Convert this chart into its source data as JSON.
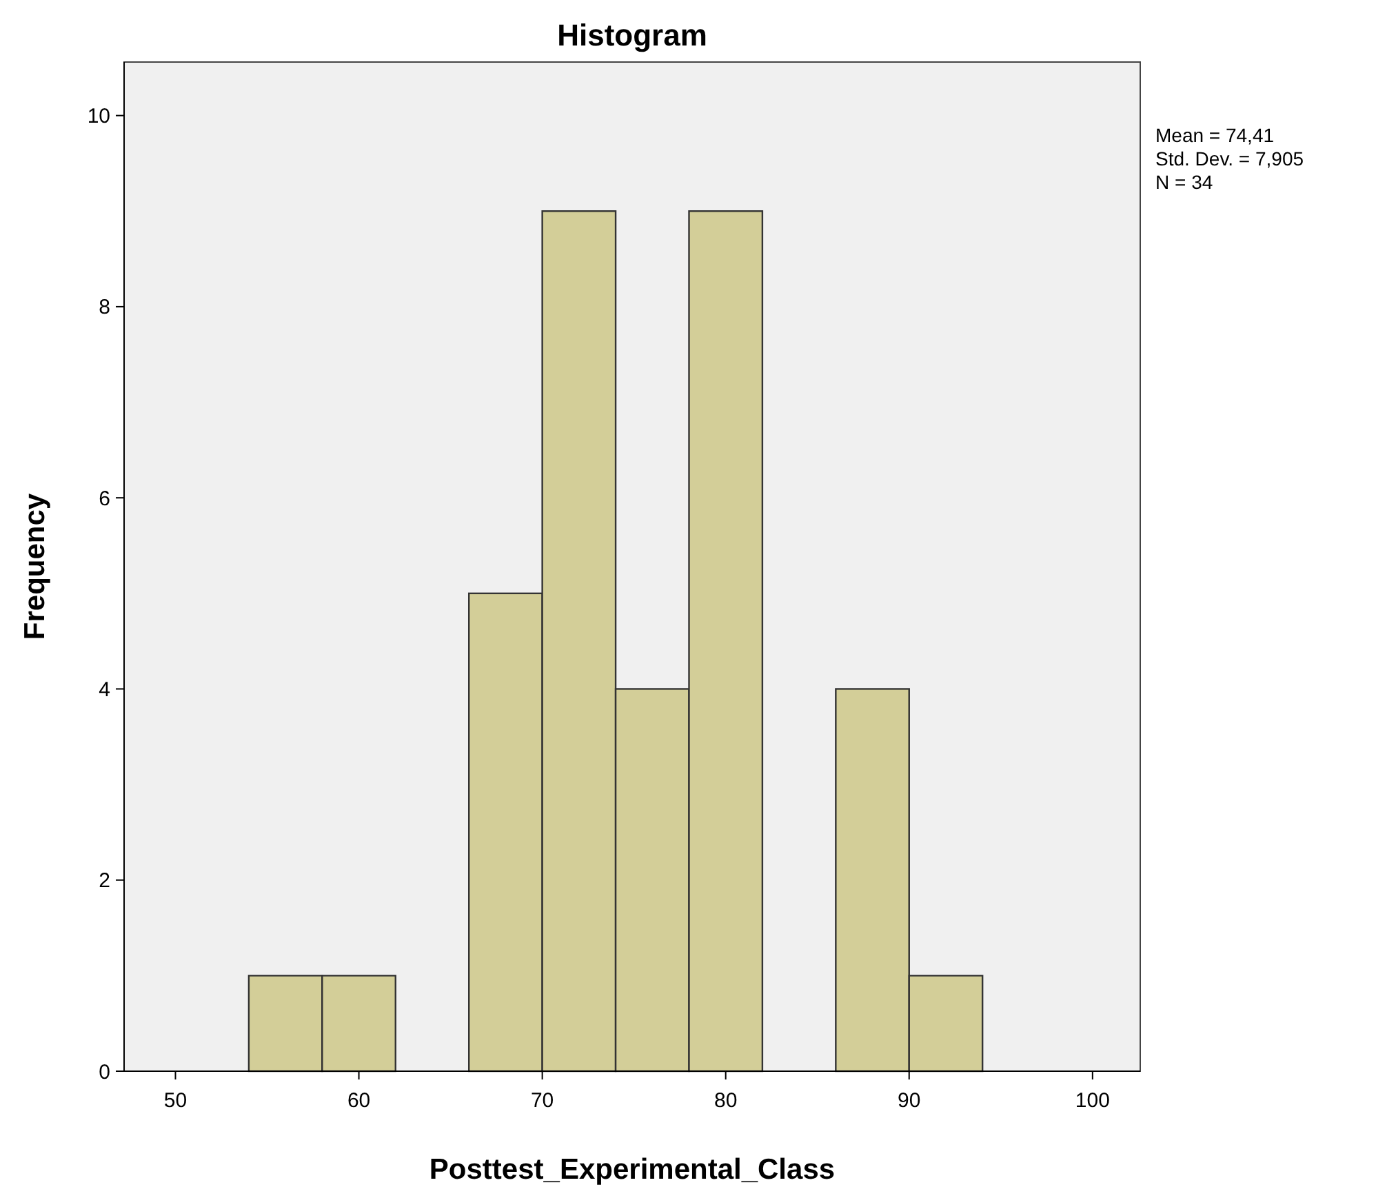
{
  "chart_data": {
    "type": "histogram",
    "title": "Histogram",
    "xlabel": "Posttest_Experimental_Class",
    "ylabel": "Frequency",
    "bins": [
      54,
      58,
      62,
      66,
      70,
      74,
      78,
      82,
      86,
      90,
      94
    ],
    "values": [
      1,
      1,
      0,
      5,
      9,
      4,
      9,
      0,
      4,
      1
    ],
    "color": "#d3ce98",
    "xlim": [
      47.2,
      102.6
    ],
    "xticks": [
      50,
      60,
      70,
      80,
      90,
      100
    ],
    "ylim": [
      0,
      10.56
    ],
    "yticks": [
      0,
      2,
      4,
      6,
      8,
      10
    ],
    "annotations": [
      "Mean = 74,41",
      "Std. Dev. = 7,905",
      "N = 34"
    ]
  }
}
